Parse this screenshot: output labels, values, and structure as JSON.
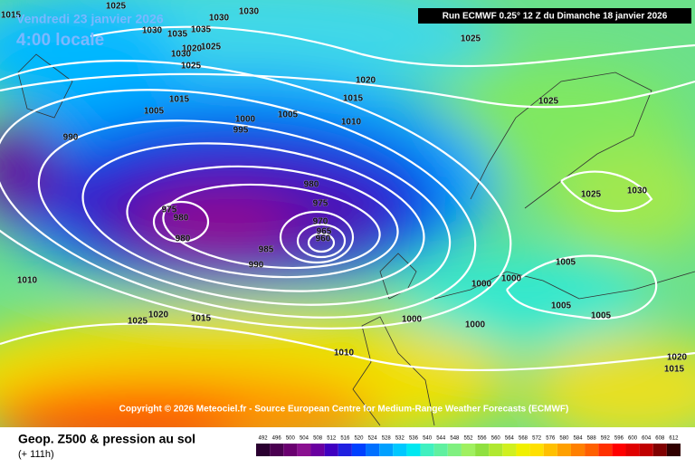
{
  "header": {
    "date": "Vendredi 23 janvier 2026",
    "time": "4:00 locale",
    "run": "Run ECMWF 0.25° 12 Z du Dimanche 18 janvier 2026"
  },
  "copyright": "Copyright © 2026 Meteociel.fr - Source European Centre for Medium-Range Weather Forecasts (ECMWF)",
  "footer": {
    "title": "Geop. Z500 & pression au sol",
    "lead": "(+ 111h)"
  },
  "isobars": [
    1015,
    1025,
    1030,
    1030,
    1030,
    1035,
    1035,
    1025,
    1020,
    1030,
    1025,
    1025,
    1020,
    1015,
    1015,
    1005,
    1005,
    1010,
    1000,
    995,
    990,
    1025,
    980,
    975,
    975,
    980,
    970,
    965,
    960,
    980,
    985,
    990,
    1025,
    1030,
    1005,
    1000,
    1000,
    1010,
    1005,
    1005,
    1025,
    1020,
    1015,
    1000,
    1000,
    1010,
    1020,
    1015
  ],
  "legend": {
    "values": [
      492,
      496,
      500,
      504,
      508,
      512,
      516,
      520,
      524,
      528,
      532,
      536,
      540,
      544,
      548,
      552,
      556,
      560,
      564,
      568,
      572,
      576,
      580,
      584,
      588,
      592,
      596,
      600,
      604,
      608,
      612
    ],
    "colors": [
      "#2a0030",
      "#4a0050",
      "#6a0070",
      "#8a1090",
      "#6a00a0",
      "#4000c0",
      "#2020e0",
      "#0040ff",
      "#0070ff",
      "#00a0ff",
      "#00c8ff",
      "#00e8f0",
      "#40f0c0",
      "#60f0a0",
      "#80f080",
      "#a0f060",
      "#90e040",
      "#b0e830",
      "#d0f020",
      "#f0f000",
      "#ffe000",
      "#ffc000",
      "#ffa000",
      "#ff8000",
      "#ff6000",
      "#ff3000",
      "#ff0000",
      "#e00000",
      "#c00000",
      "#800000",
      "#300000"
    ]
  }
}
